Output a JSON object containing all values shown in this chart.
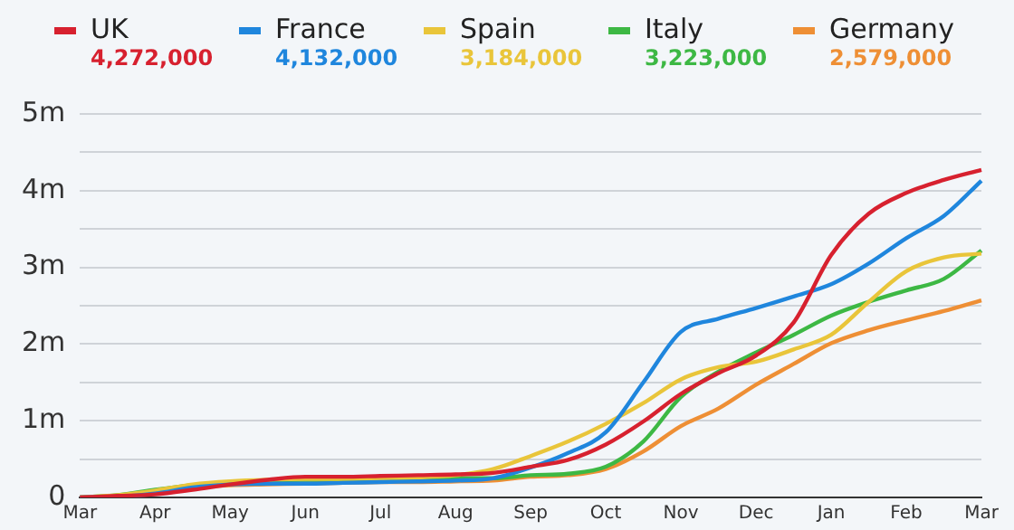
{
  "chart_data": {
    "type": "line",
    "categories": [
      "Mar",
      null,
      "Apr",
      null,
      "May",
      null,
      "Jun",
      null,
      "Jul",
      null,
      "Aug",
      null,
      "Sep",
      null,
      "Oct",
      null,
      "Nov",
      null,
      "Dec",
      null,
      "Jan",
      null,
      "Feb",
      null,
      "Mar"
    ],
    "series": [
      {
        "name": "UK",
        "color": "#d7212f",
        "values": [
          0,
          0.02,
          0.04,
          0.1,
          0.17,
          0.23,
          0.27,
          0.27,
          0.28,
          0.29,
          0.3,
          0.32,
          0.4,
          0.49,
          0.69,
          0.99,
          1.35,
          1.62,
          1.85,
          2.28,
          3.16,
          3.7,
          3.97,
          4.14,
          4.27
        ]
      },
      {
        "name": "France",
        "color": "#1f86dd",
        "values": [
          0,
          0.01,
          0.05,
          0.13,
          0.17,
          0.18,
          0.18,
          0.19,
          0.2,
          0.21,
          0.22,
          0.25,
          0.39,
          0.58,
          0.85,
          1.5,
          2.16,
          2.33,
          2.47,
          2.62,
          2.78,
          3.05,
          3.38,
          3.67,
          4.13
        ]
      },
      {
        "name": "Spain",
        "color": "#e9c53a",
        "values": [
          0,
          0.03,
          0.09,
          0.17,
          0.21,
          0.23,
          0.24,
          0.24,
          0.25,
          0.26,
          0.29,
          0.37,
          0.54,
          0.73,
          0.96,
          1.23,
          1.54,
          1.7,
          1.77,
          1.93,
          2.12,
          2.55,
          2.95,
          3.13,
          3.18
        ]
      },
      {
        "name": "Italy",
        "color": "#3db844",
        "values": [
          0,
          0.03,
          0.1,
          0.16,
          0.2,
          0.22,
          0.23,
          0.23,
          0.24,
          0.24,
          0.25,
          0.25,
          0.29,
          0.31,
          0.4,
          0.73,
          1.31,
          1.64,
          1.89,
          2.12,
          2.37,
          2.55,
          2.7,
          2.85,
          3.22
        ]
      },
      {
        "name": "Germany",
        "color": "#ee8f35",
        "values": [
          0,
          0.01,
          0.07,
          0.13,
          0.16,
          0.17,
          0.18,
          0.19,
          0.2,
          0.2,
          0.21,
          0.22,
          0.27,
          0.29,
          0.37,
          0.6,
          0.93,
          1.16,
          1.47,
          1.74,
          2.01,
          2.18,
          2.31,
          2.43,
          2.57
        ]
      }
    ],
    "annotations": [
      "4,272,000",
      "4,132,000",
      "3,184,000",
      "3,223,000",
      "2,579,000"
    ],
    "ylim": [
      0,
      5
    ],
    "yticks": [
      0,
      {
        "value": 0.5,
        "label": null
      },
      {
        "value": 1,
        "label": "1m"
      },
      {
        "value": 1.5,
        "label": null
      },
      {
        "value": 2,
        "label": "2m"
      },
      {
        "value": 2.5,
        "label": null
      },
      {
        "value": 3,
        "label": "3m"
      },
      {
        "value": 3.5,
        "label": null
      },
      {
        "value": 4,
        "label": "4m"
      },
      {
        "value": 4.5,
        "label": null
      },
      {
        "value": 5,
        "label": "5m"
      }
    ],
    "grid": "y",
    "legend": "top left",
    "marker": "none",
    "line_style": "solid"
  }
}
